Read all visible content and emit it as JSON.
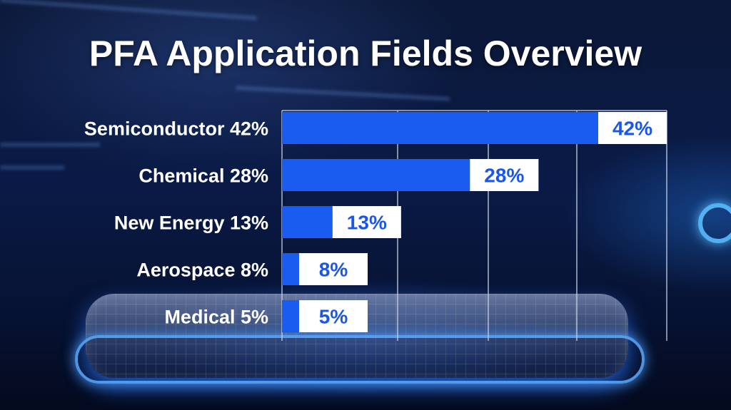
{
  "title": "PFA Application Fields Overview",
  "colors": {
    "bar": "#1a5cf0",
    "value_box": "#ffffff",
    "value_text": "#1a56e8",
    "label_text": "#ffffff",
    "grid": "#c9d3e8"
  },
  "chart_data": {
    "type": "bar",
    "orientation": "horizontal",
    "title": "PFA Application Fields Overview",
    "categories": [
      "Semiconductor",
      "Chemical",
      "New Energy",
      "Aerospace",
      "Medical"
    ],
    "category_labels": [
      "Semiconductor 42%",
      "Chemical 28%",
      "New Energy 13%",
      "Aerospace 8%",
      "Medical 5%"
    ],
    "values": [
      42,
      28,
      13,
      8,
      5
    ],
    "value_labels": [
      "42%",
      "28%",
      "13%",
      "8%",
      "5%"
    ],
    "unit": "%",
    "xlim": [
      0,
      42
    ],
    "grid": true,
    "legend": "none"
  }
}
